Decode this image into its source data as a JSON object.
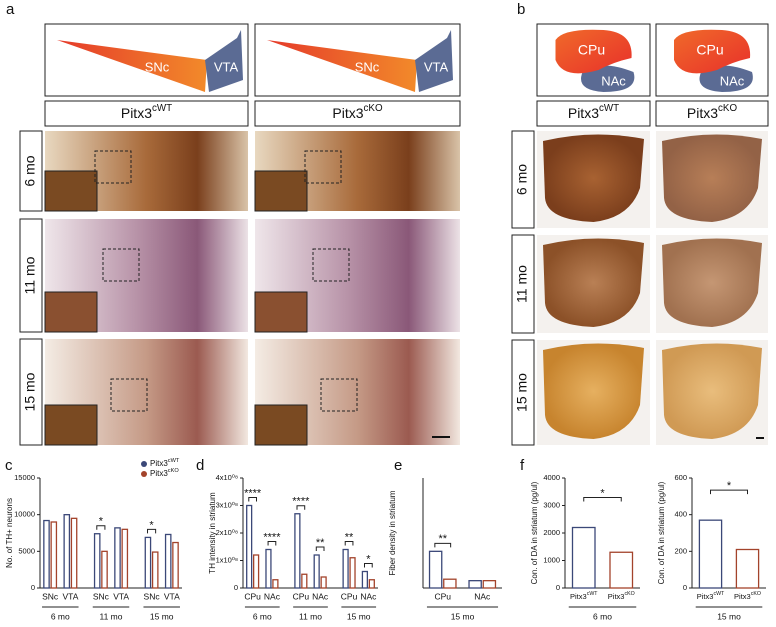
{
  "panels": {
    "a": {
      "label": "a",
      "regions": [
        "SNc",
        "VTA"
      ],
      "genotypes": [
        "Pitx3cWT",
        "Pitx3cKO"
      ],
      "ages": [
        "6 mo",
        "11 mo",
        "15 mo"
      ]
    },
    "b": {
      "label": "b",
      "regions": [
        "CPu",
        "NAc"
      ],
      "genotypes": [
        "Pitx3cWT",
        "Pitx3cKO"
      ],
      "ages": [
        "6 mo",
        "11 mo",
        "15 mo"
      ]
    }
  },
  "chart_data": [
    {
      "type": "bar",
      "label": "c",
      "ylabel": "No. of TH+ neurons",
      "groups": [
        {
          "label": "6 mo",
          "categories": [
            "SNc",
            "VTA"
          ]
        },
        {
          "label": "11 mo",
          "categories": [
            "SNc",
            "VTA"
          ]
        },
        {
          "label": "15 mo",
          "categories": [
            "SNc",
            "VTA"
          ]
        }
      ],
      "series": [
        {
          "name": "Pitx3cWT",
          "color": "#3b4878",
          "values": [
            9200,
            10000,
            7400,
            8200,
            6900,
            7300
          ]
        },
        {
          "name": "Pitx3cKO",
          "color": "#a3432b",
          "values": [
            9000,
            9500,
            5000,
            8000,
            4900,
            6200
          ]
        }
      ],
      "ylim": [
        0,
        15000
      ],
      "yticks": [
        0,
        5000,
        10000,
        15000
      ],
      "legend": "top-right",
      "significance": [
        {
          "label": "*",
          "category": 2
        },
        {
          "label": "*",
          "category": 4
        }
      ]
    },
    {
      "type": "bar",
      "label": "d",
      "ylabel": "TH intensity in striatum",
      "groups": [
        {
          "label": "6 mo",
          "categories": [
            "CPu",
            "NAc"
          ]
        },
        {
          "label": "11 mo",
          "categories": [
            "CPu",
            "NAc"
          ]
        },
        {
          "label": "15 mo",
          "categories": [
            "CPu",
            "NAc"
          ]
        }
      ],
      "series": [
        {
          "name": "Pitx3cWT",
          "color": "#3b4878",
          "values": [
            300000000,
            140000000,
            270000000,
            120000000,
            140000000,
            60000000
          ]
        },
        {
          "name": "Pitx3cKO",
          "color": "#a3432b",
          "values": [
            120000000,
            30000000,
            50000000,
            40000000,
            110000000,
            30000000
          ]
        }
      ],
      "ylim": [
        0,
        400000000
      ],
      "yticks": [
        0,
        {
          "value": 100000000,
          "label": "1x10⁰⁸"
        },
        {
          "value": 200000000,
          "label": "2x10⁰⁸"
        },
        {
          "value": 300000000,
          "label": "3x10⁰⁸"
        },
        {
          "value": 400000000,
          "label": "4x10⁰⁸"
        }
      ],
      "significance": [
        {
          "label": "****",
          "category": 0
        },
        {
          "label": "****",
          "category": 1
        },
        {
          "label": "****",
          "category": 2
        },
        {
          "label": "**",
          "category": 3
        },
        {
          "label": "**",
          "category": 4
        },
        {
          "label": "*",
          "category": 5
        }
      ]
    },
    {
      "type": "bar",
      "label": "e",
      "ylabel": "Fiber density in striatum",
      "groups": [
        {
          "label": "15 mo",
          "categories": [
            "CPu",
            "NAc"
          ]
        }
      ],
      "series": [
        {
          "name": "Pitx3cWT",
          "color": "#3b4878",
          "values": [
            500,
            100
          ]
        },
        {
          "name": "Pitx3cKO",
          "color": "#a3432b",
          "values": [
            120,
            100
          ]
        }
      ],
      "ylim": [
        0,
        1500
      ],
      "significance": [
        {
          "label": "**",
          "category": 0
        }
      ]
    },
    {
      "type": "bar",
      "label": "f",
      "ylabel": "Con. of DA in striatum (pg/ul)",
      "groups": [
        {
          "label": "6 mo",
          "categories": [
            "Pitx3cWT",
            "Pitx3cKO"
          ]
        }
      ],
      "values": [
        2200,
        1300
      ],
      "colors": [
        "#3b4878",
        "#a3432b"
      ],
      "ylim": [
        0,
        4000
      ],
      "yticks": [
        0,
        1000,
        2000,
        3000,
        4000
      ],
      "significance": [
        {
          "label": "*"
        }
      ]
    },
    {
      "type": "bar",
      "ylabel": "Con. of DA in striatum (pg/ul)",
      "groups": [
        {
          "label": "15 mo",
          "categories": [
            "Pitx3cWT",
            "Pitx3cKO"
          ]
        }
      ],
      "values": [
        370,
        210
      ],
      "colors": [
        "#3b4878",
        "#a3432b"
      ],
      "ylim": [
        0,
        600
      ],
      "yticks": [
        0,
        200,
        400,
        600
      ],
      "significance": [
        {
          "label": "*"
        }
      ]
    }
  ]
}
